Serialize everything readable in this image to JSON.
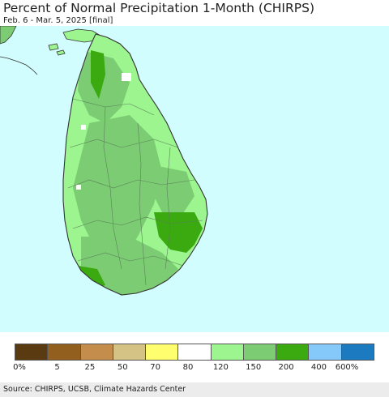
{
  "title": "Percent of Normal Precipitation 1-Month (CHIRPS)",
  "subtitle": "Feb. 6 - Mar. 5, 2025 [final]",
  "source": "Source: CHIRPS, UCSB, Climate Hazards Center",
  "colors": {
    "ocean": "#d2fdfe",
    "land_base": "#9cf58e",
    "above_150": "#7ccc73",
    "above_200": "#3aaa10",
    "near_normal": "#ffffff",
    "outline": "#333333",
    "district_lines": "#5a7f5a"
  },
  "legend": {
    "colors": [
      "#5a3a10",
      "#935f1f",
      "#c48d4b",
      "#d5c386",
      "#fefe6e",
      "#ffffff",
      "#9cf58e",
      "#7ccc73",
      "#3aaa10",
      "#85c9fb",
      "#1c7ac0"
    ],
    "labels": [
      "0%",
      "5",
      "25",
      "50",
      "70",
      "80",
      "120",
      "150",
      "200",
      "400",
      "600%"
    ]
  }
}
